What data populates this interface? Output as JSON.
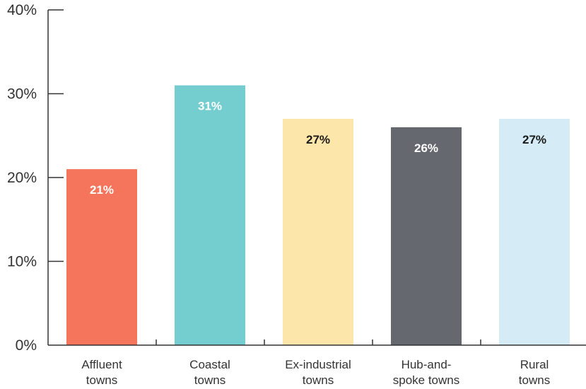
{
  "chart_data": {
    "type": "bar",
    "categories": [
      [
        "Affluent",
        "towns"
      ],
      [
        "Coastal",
        "towns"
      ],
      [
        "Ex-industrial",
        "towns"
      ],
      [
        "Hub-and-",
        "spoke towns"
      ],
      [
        "Rural",
        "towns"
      ]
    ],
    "values": [
      21,
      31,
      27,
      26,
      27
    ],
    "value_labels": [
      "21%",
      "31%",
      "27%",
      "26%",
      "27%"
    ],
    "colors": [
      "#f4755b",
      "#74cdce",
      "#fce6a9",
      "#65686e",
      "#d5ecf6"
    ],
    "label_colors": [
      "#ffffff",
      "#ffffff",
      "#1a1a1a",
      "#ffffff",
      "#1a1a1a"
    ],
    "ylim": [
      0,
      40
    ],
    "yticks": [
      0,
      10,
      20,
      30,
      40
    ],
    "ytick_labels": [
      "0%",
      "10%",
      "20%",
      "30%",
      "40%"
    ],
    "grid": false,
    "title": "",
    "xlabel": "",
    "ylabel": ""
  }
}
